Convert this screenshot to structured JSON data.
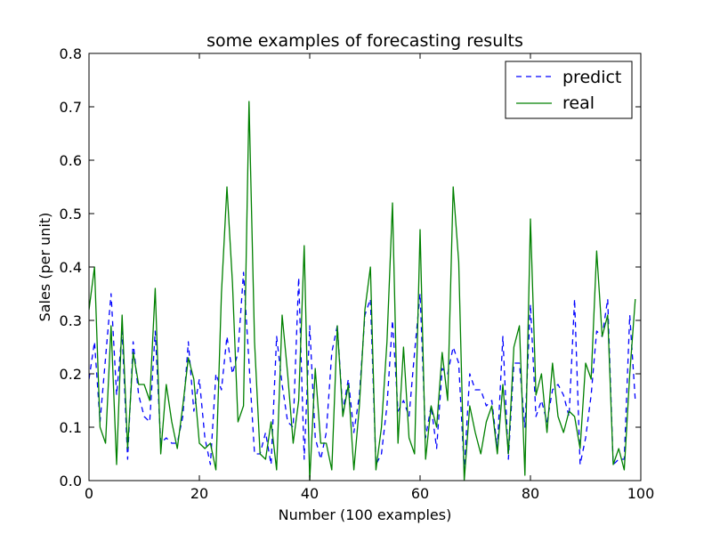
{
  "chart_data": {
    "type": "line",
    "title": "some examples of forecasting results",
    "xlabel": "Number (100 examples)",
    "ylabel": "Sales (per unit)",
    "xlim": [
      0,
      100
    ],
    "ylim": [
      0.0,
      0.8
    ],
    "xticks": [
      0,
      20,
      40,
      60,
      80,
      100
    ],
    "xtick_labels": [
      "0",
      "20",
      "40",
      "60",
      "80",
      "100"
    ],
    "yticks": [
      0.0,
      0.1,
      0.2,
      0.3,
      0.4,
      0.5,
      0.6,
      0.7,
      0.8
    ],
    "ytick_labels": [
      "0.0",
      "0.1",
      "0.2",
      "0.3",
      "0.4",
      "0.5",
      "0.6",
      "0.7",
      "0.8"
    ],
    "grid": false,
    "legend_position": "top-right",
    "x": [
      0,
      1,
      2,
      3,
      4,
      5,
      6,
      7,
      8,
      9,
      10,
      11,
      12,
      13,
      14,
      15,
      16,
      17,
      18,
      19,
      20,
      21,
      22,
      23,
      24,
      25,
      26,
      27,
      28,
      29,
      30,
      31,
      32,
      33,
      34,
      35,
      36,
      37,
      38,
      39,
      40,
      41,
      42,
      43,
      44,
      45,
      46,
      47,
      48,
      49,
      50,
      51,
      52,
      53,
      54,
      55,
      56,
      57,
      58,
      59,
      60,
      61,
      62,
      63,
      64,
      65,
      66,
      67,
      68,
      69,
      70,
      71,
      72,
      73,
      74,
      75,
      76,
      77,
      78,
      79,
      80,
      81,
      82,
      83,
      84,
      85,
      86,
      87,
      88,
      89,
      90,
      91,
      92,
      93,
      94,
      95,
      96,
      97,
      98,
      99
    ],
    "series": [
      {
        "name": "predict",
        "style": "dashed",
        "color": "#0000ff",
        "values": [
          0.19,
          0.26,
          0.11,
          0.23,
          0.35,
          0.16,
          0.28,
          0.04,
          0.26,
          0.16,
          0.12,
          0.11,
          0.28,
          0.07,
          0.08,
          0.07,
          0.07,
          0.12,
          0.26,
          0.13,
          0.19,
          0.08,
          0.03,
          0.2,
          0.17,
          0.27,
          0.2,
          0.24,
          0.39,
          0.22,
          0.05,
          0.05,
          0.09,
          0.03,
          0.27,
          0.18,
          0.11,
          0.1,
          0.38,
          0.04,
          0.29,
          0.08,
          0.04,
          0.09,
          0.24,
          0.29,
          0.13,
          0.19,
          0.09,
          0.16,
          0.31,
          0.34,
          0.03,
          0.05,
          0.14,
          0.3,
          0.13,
          0.15,
          0.12,
          0.24,
          0.35,
          0.08,
          0.14,
          0.06,
          0.21,
          0.2,
          0.25,
          0.22,
          0.02,
          0.2,
          0.17,
          0.17,
          0.14,
          0.15,
          0.06,
          0.27,
          0.04,
          0.22,
          0.22,
          0.1,
          0.33,
          0.12,
          0.15,
          0.11,
          0.17,
          0.18,
          0.16,
          0.12,
          0.34,
          0.03,
          0.08,
          0.16,
          0.28,
          0.27,
          0.34,
          0.03,
          0.04,
          0.04,
          0.31,
          0.15
        ]
      },
      {
        "name": "real",
        "style": "solid",
        "color": "#008000",
        "values": [
          0.32,
          0.4,
          0.1,
          0.07,
          0.29,
          0.03,
          0.31,
          0.06,
          0.24,
          0.18,
          0.18,
          0.15,
          0.36,
          0.05,
          0.18,
          0.11,
          0.06,
          0.14,
          0.23,
          0.19,
          0.07,
          0.06,
          0.07,
          0.02,
          0.35,
          0.55,
          0.37,
          0.11,
          0.14,
          0.71,
          0.26,
          0.05,
          0.04,
          0.11,
          0.02,
          0.31,
          0.2,
          0.07,
          0.15,
          0.44,
          0.0,
          0.21,
          0.07,
          0.07,
          0.02,
          0.29,
          0.12,
          0.18,
          0.02,
          0.14,
          0.32,
          0.4,
          0.02,
          0.1,
          0.26,
          0.52,
          0.07,
          0.25,
          0.08,
          0.05,
          0.47,
          0.04,
          0.14,
          0.1,
          0.24,
          0.15,
          0.55,
          0.41,
          0.0,
          0.14,
          0.09,
          0.05,
          0.11,
          0.14,
          0.05,
          0.18,
          0.05,
          0.25,
          0.29,
          0.01,
          0.49,
          0.16,
          0.2,
          0.09,
          0.22,
          0.12,
          0.09,
          0.13,
          0.12,
          0.06,
          0.22,
          0.19,
          0.43,
          0.27,
          0.31,
          0.03,
          0.06,
          0.02,
          0.2,
          0.34
        ]
      }
    ]
  }
}
